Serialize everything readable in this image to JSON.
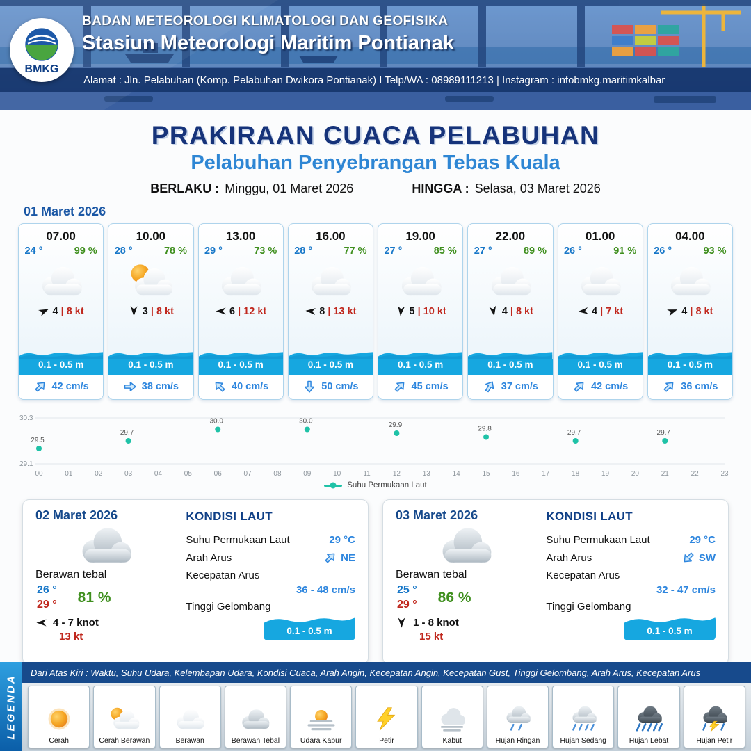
{
  "header": {
    "logo_text": "BMKG",
    "org": "BADAN METEOROLOGI KLIMATOLOGI DAN GEOFISIKA",
    "station": "Stasiun Meteorologi Maritim Pontianak",
    "address": "Alamat : Jln. Pelabuhan (Komp. Pelabuhan Dwikora Pontianak) I Telp/WA : 08989111213 | Instagram : infobmkg.maritimkalbar"
  },
  "title": {
    "main": "PRAKIRAAN CUACA PELABUHAN",
    "subtitle": "Pelabuhan Penyebrangan Tebas Kuala",
    "valid_label": "BERLAKU :",
    "valid_value": "Minggu, 01 Maret 2026",
    "until_label": "HINGGA :",
    "until_value": "Selasa, 03 Maret 2026"
  },
  "day1": {
    "date": "01 Maret 2026",
    "cards": [
      {
        "time": "07.00",
        "temp": "24 °",
        "rh": "99 %",
        "icon_ref": "#ic-cloud",
        "wind_speed": "4",
        "gust": "| 8 kt",
        "wind_deg": -25,
        "wave": "0.1 - 0.5 m",
        "current": "42 cm/s",
        "current_deg": -45
      },
      {
        "time": "10.00",
        "temp": "28 °",
        "rh": "78 %",
        "icon_ref": "#ic-cloud-sun",
        "wind_speed": "3",
        "gust": "| 8 kt",
        "wind_deg": 90,
        "wave": "0.1 - 0.5 m",
        "current": "38 cm/s",
        "current_deg": 0
      },
      {
        "time": "13.00",
        "temp": "29 °",
        "rh": "73 %",
        "icon_ref": "#ic-cloud",
        "wind_speed": "6",
        "gust": "| 12 kt",
        "wind_deg": 180,
        "wave": "0.1 - 0.5 m",
        "current": "40 cm/s",
        "current_deg": -135
      },
      {
        "time": "16.00",
        "temp": "28 °",
        "rh": "77 %",
        "icon_ref": "#ic-cloud",
        "wind_speed": "8",
        "gust": "| 13 kt",
        "wind_deg": 185,
        "wave": "0.1 - 0.5 m",
        "current": "50 cm/s",
        "current_deg": 90
      },
      {
        "time": "19.00",
        "temp": "27 °",
        "rh": "85 %",
        "icon_ref": "#ic-cloud",
        "wind_speed": "5",
        "gust": "| 10 kt",
        "wind_deg": 95,
        "wave": "0.1 - 0.5 m",
        "current": "45 cm/s",
        "current_deg": -45
      },
      {
        "time": "22.00",
        "temp": "27 °",
        "rh": "89 %",
        "icon_ref": "#ic-cloud",
        "wind_speed": "4",
        "gust": "| 8 kt",
        "wind_deg": 80,
        "wave": "0.1 - 0.5 m",
        "current": "37 cm/s",
        "current_deg": -60
      },
      {
        "time": "01.00",
        "temp": "26 °",
        "rh": "91 %",
        "icon_ref": "#ic-cloud",
        "wind_speed": "4",
        "gust": "| 7 kt",
        "wind_deg": 175,
        "wave": "0.1 - 0.5 m",
        "current": "42 cm/s",
        "current_deg": -45
      },
      {
        "time": "04.00",
        "temp": "26 °",
        "rh": "93 %",
        "icon_ref": "#ic-cloud",
        "wind_speed": "4",
        "gust": "| 8 kt",
        "wind_deg": -20,
        "wave": "0.1 - 0.5 m",
        "current": "36 cm/s",
        "current_deg": -45
      }
    ]
  },
  "chart_data": {
    "type": "scatter",
    "series": [
      {
        "name": "Suhu Permukaan Laut",
        "x": [
          0,
          3,
          6,
          9,
          12,
          15,
          18,
          21
        ],
        "values": [
          29.5,
          29.7,
          30.0,
          30.0,
          29.9,
          29.8,
          29.7,
          29.7
        ]
      }
    ],
    "x_ticks": [
      "00",
      "01",
      "02",
      "03",
      "04",
      "05",
      "06",
      "07",
      "08",
      "09",
      "10",
      "11",
      "12",
      "13",
      "14",
      "15",
      "16",
      "17",
      "18",
      "19",
      "20",
      "21",
      "22",
      "23"
    ],
    "ylim": [
      29.1,
      30.3
    ],
    "point_color": "#1fc2a7",
    "grid": true,
    "legend_position": "bottom"
  },
  "day_summaries": [
    {
      "date": "02 Maret 2026",
      "icon_ref": "#ic-cloud-thick",
      "condition": "Berawan tebal",
      "temp_min": "26 °",
      "temp_max": "29 °",
      "rh": "81 %",
      "wind_deg": 180,
      "wind": "4 - 7 knot",
      "gust": "13 kt",
      "sea": {
        "title": "KONDISI LAUT",
        "sst_label": "Suhu Permukaan Laut",
        "sst": "29 °C",
        "dir_label": "Arah Arus",
        "dir": "NE",
        "dir_deg": -45,
        "speed_label": "Kecepatan Arus",
        "speed": "36 - 48 cm/s",
        "wave_label": "Tinggi Gelombang",
        "wave": "0.1 - 0.5 m"
      }
    },
    {
      "date": "03 Maret 2026",
      "icon_ref": "#ic-cloud-thick",
      "condition": "Berawan tebal",
      "temp_min": "25 °",
      "temp_max": "29 °",
      "rh": "86 %",
      "wind_deg": 90,
      "wind": "1 - 8 knot",
      "gust": "15 kt",
      "sea": {
        "title": "KONDISI LAUT",
        "sst_label": "Suhu Permukaan Laut",
        "sst": "29 °C",
        "dir_label": "Arah Arus",
        "dir": "SW",
        "dir_deg": 135,
        "speed_label": "Kecepatan Arus",
        "speed": "32 - 47 cm/s",
        "wave_label": "Tinggi Gelombang",
        "wave": "0.1 - 0.5 m"
      }
    }
  ],
  "legend": {
    "title": "LEGENDA",
    "description": "Dari Atas Kiri : Waktu, Suhu Udara, Kelembapan Udara, Kondisi Cuaca, Arah Angin, Kecepatan Angin, Kecepatan Gust, Tinggi Gelombang, Arah Arus, Kecepatan Arus",
    "items": [
      {
        "label": "Cerah",
        "icon": "sun-icon",
        "icon_ref": "#ic-sun"
      },
      {
        "label": "Cerah Berawan",
        "icon": "sun-cloud-icon",
        "icon_ref": "#ic-cloud-sun"
      },
      {
        "label": "Berawan",
        "icon": "cloud-icon",
        "icon_ref": "#ic-cloud"
      },
      {
        "label": "Berawan Tebal",
        "icon": "thick-cloud-icon",
        "icon_ref": "#ic-cloud-thick"
      },
      {
        "label": "Udara Kabur",
        "icon": "haze-icon",
        "icon_ref": "#ic-haze"
      },
      {
        "label": "Petir",
        "icon": "lightning-icon",
        "icon_ref": "#ic-bolt"
      },
      {
        "label": "Kabut",
        "icon": "fog-icon",
        "icon_ref": "#ic-fog"
      },
      {
        "label": "Hujan Ringan",
        "icon": "light-rain-icon",
        "icon_ref": "#ic-rain-light"
      },
      {
        "label": "Hujan Sedang",
        "icon": "moderate-rain-icon",
        "icon_ref": "#ic-rain-med"
      },
      {
        "label": "Hujan Lebat",
        "icon": "heavy-rain-icon",
        "icon_ref": "#ic-rain-heavy"
      },
      {
        "label": "Hujan Petir",
        "icon": "thunderstorm-icon",
        "icon_ref": "#ic-storm"
      }
    ]
  }
}
